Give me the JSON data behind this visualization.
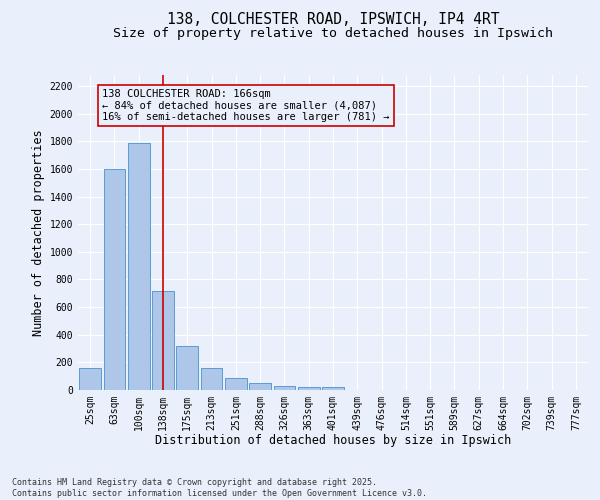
{
  "title_line1": "138, COLCHESTER ROAD, IPSWICH, IP4 4RT",
  "title_line2": "Size of property relative to detached houses in Ipswich",
  "xlabel": "Distribution of detached houses by size in Ipswich",
  "ylabel": "Number of detached properties",
  "categories": [
    "25sqm",
    "63sqm",
    "100sqm",
    "138sqm",
    "175sqm",
    "213sqm",
    "251sqm",
    "288sqm",
    "326sqm",
    "363sqm",
    "401sqm",
    "439sqm",
    "476sqm",
    "514sqm",
    "551sqm",
    "589sqm",
    "627sqm",
    "664sqm",
    "702sqm",
    "739sqm",
    "777sqm"
  ],
  "values": [
    160,
    1600,
    1790,
    720,
    320,
    160,
    90,
    50,
    30,
    20,
    20,
    0,
    0,
    0,
    0,
    0,
    0,
    0,
    0,
    0,
    0
  ],
  "bar_color": "#aec6e8",
  "bar_edge_color": "#5b9bd5",
  "vline_x_index": 3,
  "vline_color": "#cc0000",
  "annotation_text": "138 COLCHESTER ROAD: 166sqm\n← 84% of detached houses are smaller (4,087)\n16% of semi-detached houses are larger (781) →",
  "annotation_box_color": "#cc0000",
  "ylim": [
    0,
    2280
  ],
  "yticks": [
    0,
    200,
    400,
    600,
    800,
    1000,
    1200,
    1400,
    1600,
    1800,
    2000,
    2200
  ],
  "bg_color": "#eaf0fb",
  "grid_color": "#ffffff",
  "footnote": "Contains HM Land Registry data © Crown copyright and database right 2025.\nContains public sector information licensed under the Open Government Licence v3.0.",
  "title_fontsize": 10.5,
  "subtitle_fontsize": 9.5,
  "tick_fontsize": 7,
  "label_fontsize": 8.5,
  "annot_fontsize": 7.5,
  "footnote_fontsize": 6
}
